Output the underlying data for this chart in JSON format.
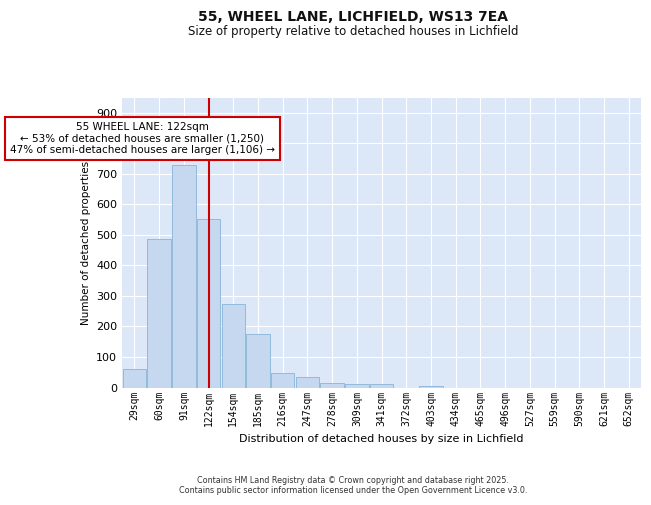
{
  "title": "55, WHEEL LANE, LICHFIELD, WS13 7EA",
  "subtitle": "Size of property relative to detached houses in Lichfield",
  "xlabel": "Distribution of detached houses by size in Lichfield",
  "ylabel": "Number of detached properties",
  "categories": [
    "29sqm",
    "60sqm",
    "91sqm",
    "122sqm",
    "154sqm",
    "185sqm",
    "216sqm",
    "247sqm",
    "278sqm",
    "309sqm",
    "341sqm",
    "372sqm",
    "403sqm",
    "434sqm",
    "465sqm",
    "496sqm",
    "527sqm",
    "559sqm",
    "590sqm",
    "621sqm",
    "652sqm"
  ],
  "values": [
    60,
    485,
    730,
    553,
    272,
    175,
    48,
    35,
    15,
    10,
    13,
    0,
    5,
    0,
    0,
    0,
    0,
    0,
    0,
    0,
    0
  ],
  "bar_color": "#c5d8f0",
  "bar_edge_color": "#8ab4d8",
  "vline_x": 3,
  "vline_color": "#cc0000",
  "annotation_text": "55 WHEEL LANE: 122sqm\n← 53% of detached houses are smaller (1,250)\n47% of semi-detached houses are larger (1,106) →",
  "annotation_box_color": "#cc0000",
  "ylim": [
    0,
    950
  ],
  "yticks": [
    0,
    100,
    200,
    300,
    400,
    500,
    600,
    700,
    800,
    900
  ],
  "background_color": "#dce8f8",
  "grid_color": "#ffffff",
  "fig_background": "#ffffff",
  "footer_line1": "Contains HM Land Registry data © Crown copyright and database right 2025.",
  "footer_line2": "Contains public sector information licensed under the Open Government Licence v3.0."
}
